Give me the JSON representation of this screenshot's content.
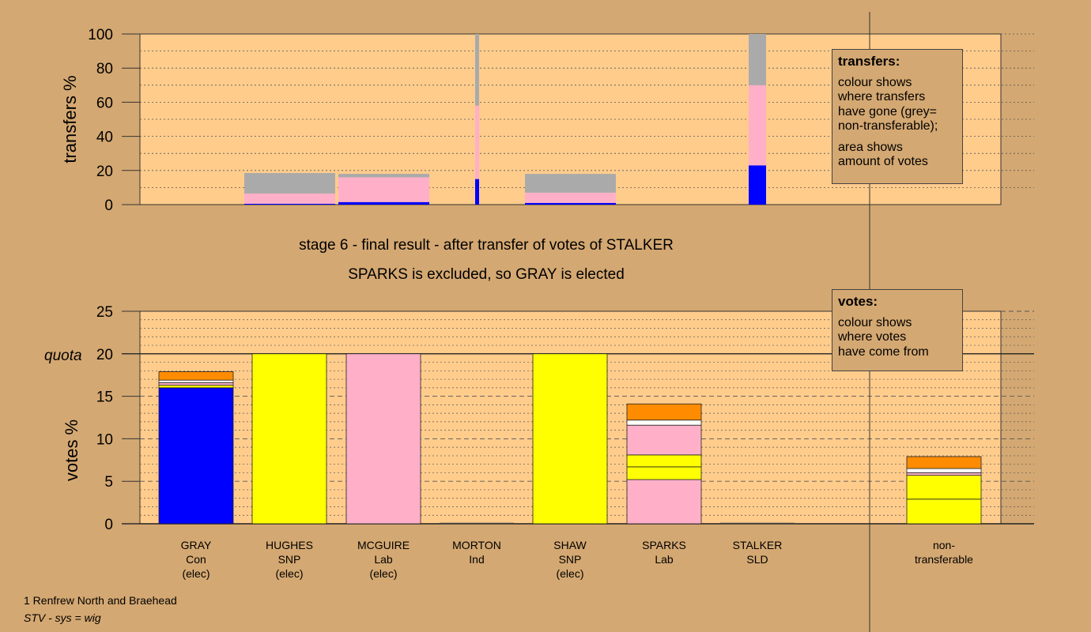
{
  "chart_data": [
    {
      "type": "bar",
      "stacked": true,
      "ylabel": "transfers %",
      "ylim": [
        0,
        100
      ],
      "yticks": [
        0,
        20,
        40,
        60,
        80,
        100
      ],
      "categories": [
        "GRAY",
        "HUGHES",
        "MCGUIRE",
        "MORTON",
        "SHAW",
        "SPARKS",
        "STALKER",
        "non-transferable"
      ],
      "bars": [
        {
          "category": "GRAY",
          "segments": [
            {
              "value": 0.5,
              "color": "#0000ff"
            },
            {
              "value": 6,
              "color": "#ffb0c8"
            },
            {
              "value": 12,
              "color": "#aaaaaa"
            }
          ]
        },
        {
          "category": "HUGHES",
          "segments": [
            {
              "value": 1.5,
              "color": "#0000ff"
            },
            {
              "value": 14.5,
              "color": "#ffb0c8"
            },
            {
              "value": 2,
              "color": "#aaaaaa"
            }
          ]
        },
        {
          "category": "MORTON",
          "segments": [
            {
              "value": 15,
              "color": "#0000ff"
            },
            {
              "value": 43,
              "color": "#ffb0c8"
            },
            {
              "value": 42,
              "color": "#aaaaaa"
            }
          ]
        },
        {
          "category": "MCGUIRE",
          "segments": [
            {
              "value": 1,
              "color": "#0000ff"
            },
            {
              "value": 6,
              "color": "#ffb0c8"
            },
            {
              "value": 11,
              "color": "#aaaaaa"
            }
          ]
        },
        {
          "category": "STALKER",
          "segments": [
            {
              "value": 23,
              "color": "#0000ff"
            },
            {
              "value": 47,
              "color": "#ffb0c8"
            },
            {
              "value": 30,
              "color": "#aaaaaa"
            }
          ]
        }
      ],
      "legend_box": {
        "title": "transfers:",
        "lines_a": [
          "colour shows",
          "where transfers",
          "have gone (grey=",
          "non-transferable);"
        ],
        "lines_b": [
          "area shows",
          "amount of votes"
        ]
      }
    },
    {
      "type": "bar",
      "stacked": true,
      "ylabel": "votes %",
      "ylim": [
        0,
        25
      ],
      "yticks": [
        0,
        5,
        10,
        15,
        20,
        25
      ],
      "quota": {
        "label": "quota",
        "value": 20
      },
      "candidates": [
        {
          "name": "GRAY",
          "party": "Con",
          "status": "(elec)"
        },
        {
          "name": "HUGHES",
          "party": "SNP",
          "status": "(elec)"
        },
        {
          "name": "MCGUIRE",
          "party": "Lab",
          "status": "(elec)"
        },
        {
          "name": "MORTON",
          "party": "Ind",
          "status": ""
        },
        {
          "name": "SHAW",
          "party": "SNP",
          "status": "(elec)"
        },
        {
          "name": "SPARKS",
          "party": "Lab",
          "status": ""
        },
        {
          "name": "STALKER",
          "party": "SLD",
          "status": ""
        },
        {
          "name": "non-",
          "party": "transferable",
          "status": ""
        }
      ],
      "bars": [
        {
          "category": "GRAY",
          "segments": [
            {
              "value": 16,
              "color": "#0000ff"
            },
            {
              "value": 0.3,
              "color": "#ffff00"
            },
            {
              "value": 0.3,
              "color": "#ffb0c8"
            },
            {
              "value": 0.3,
              "color": "#ffffff"
            },
            {
              "value": 1.0,
              "color": "#ff8c00"
            }
          ]
        },
        {
          "category": "HUGHES",
          "segments": [
            {
              "value": 20,
              "color": "#ffff00"
            }
          ]
        },
        {
          "category": "MCGUIRE",
          "segments": [
            {
              "value": 20,
              "color": "#ffb0c8"
            }
          ]
        },
        {
          "category": "MORTON",
          "segments": [
            {
              "value": 0,
              "color": "#808080"
            }
          ]
        },
        {
          "category": "SHAW",
          "segments": [
            {
              "value": 20,
              "color": "#ffff00"
            }
          ]
        },
        {
          "category": "SPARKS",
          "segments": [
            {
              "value": 5.2,
              "color": "#ffb0c8"
            },
            {
              "value": 1.5,
              "color": "#ffff00"
            },
            {
              "value": 1.4,
              "color": "#ffff00"
            },
            {
              "value": 3.5,
              "color": "#ffb0c8"
            },
            {
              "value": 0.6,
              "color": "#ffffff"
            },
            {
              "value": 1.9,
              "color": "#ff8c00"
            }
          ]
        },
        {
          "category": "STALKER",
          "segments": [
            {
              "value": 0,
              "color": "#808080"
            }
          ]
        },
        {
          "category": "non-transferable",
          "segments": [
            {
              "value": 2.9,
              "color": "#ffff00"
            },
            {
              "value": 2.8,
              "color": "#ffff00"
            },
            {
              "value": 0.3,
              "color": "#ffb0c8"
            },
            {
              "value": 0.5,
              "color": "#ffffff"
            },
            {
              "value": 1.4,
              "color": "#ff8c00"
            }
          ]
        }
      ],
      "legend_box": {
        "title": "votes:",
        "lines_a": [
          "colour shows",
          "where votes",
          "have come from"
        ]
      }
    }
  ],
  "colors": {
    "background": "#d4a872",
    "plot_area": "#ffcc8c",
    "Con": "#0000ff",
    "SNP": "#ffff00",
    "Lab": "#ffb0c8",
    "SLD": "#ff8c00",
    "Ind": "#ffffff",
    "non_transferable": "#aaaaaa"
  },
  "stage": {
    "line1": "stage 6 - final result - after transfer of votes of STALKER",
    "line2": "SPARKS is excluded, so GRAY is elected"
  },
  "footer": {
    "ward": "1 Renfrew North and Braehead",
    "system": "STV - sys = wig"
  }
}
